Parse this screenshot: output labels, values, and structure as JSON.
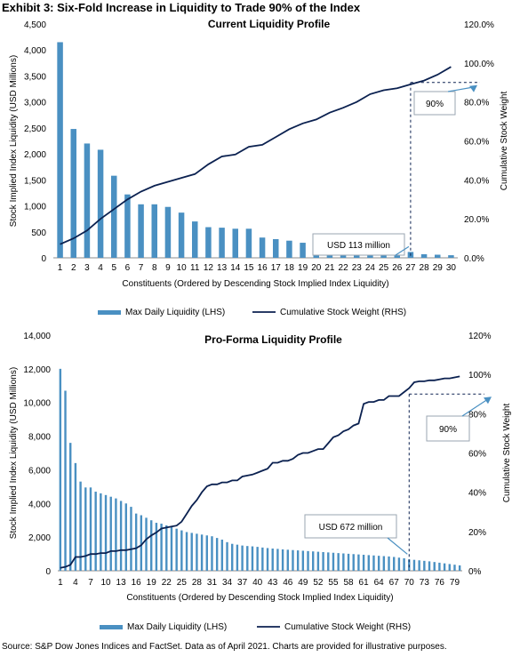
{
  "exhibit_title": "Exhibit 3: Six-Fold Increase in Liquidity to Trade 90% of the Index",
  "source_note": "Source: S&P Dow Jones Indices and FactSet. Data as of April 2021. Charts are provided for illustrative purposes.",
  "colors": {
    "bar": "#4a90c2",
    "line": "#0b2150",
    "callout": "#4a90c2"
  },
  "chart_data": [
    {
      "type": "bar",
      "title": "Current Liquidity Profile",
      "xlabel": "Constituents (Ordered by Descending Stock Implied Index Liquidity)",
      "ylabel": "Stock Implied Index Liquidity (USD Millions)",
      "y2label": "Cumulative Stock Weight",
      "ylim": [
        0,
        4500
      ],
      "y2lim": [
        0,
        1.2
      ],
      "yticks": [
        "0",
        "500",
        "1,000",
        "1,500",
        "2,000",
        "2,500",
        "3,000",
        "3,500",
        "4,000",
        "4,500"
      ],
      "y2ticks": [
        "0.0%",
        "20.0%",
        "40.0%",
        "60.0%",
        "80.0%",
        "100.0%",
        "120.0%"
      ],
      "xticks": [
        "1",
        "2",
        "3",
        "4",
        "5",
        "6",
        "7",
        "8",
        "9",
        "10",
        "11",
        "12",
        "13",
        "14",
        "15",
        "16",
        "17",
        "18",
        "19",
        "20",
        "21",
        "22",
        "23",
        "24",
        "25",
        "26",
        "27",
        "28",
        "29",
        "30"
      ],
      "categories": [
        1,
        2,
        3,
        4,
        5,
        6,
        7,
        8,
        9,
        10,
        11,
        12,
        13,
        14,
        15,
        16,
        17,
        18,
        19,
        20,
        21,
        22,
        23,
        24,
        25,
        26,
        27,
        28,
        29,
        30
      ],
      "series": [
        {
          "name": "Max Daily Liquidity (LHS)",
          "kind": "bar",
          "values": [
            4150,
            2480,
            2200,
            2080,
            1580,
            1220,
            1030,
            1030,
            980,
            870,
            700,
            590,
            580,
            560,
            560,
            390,
            360,
            330,
            290,
            290,
            290,
            250,
            210,
            190,
            170,
            160,
            113,
            70,
            60,
            50
          ]
        },
        {
          "name": "Cumulative Stock Weight (RHS)",
          "kind": "line",
          "values": [
            0.07,
            0.1,
            0.14,
            0.2,
            0.25,
            0.3,
            0.34,
            0.37,
            0.39,
            0.41,
            0.43,
            0.48,
            0.52,
            0.53,
            0.57,
            0.58,
            0.62,
            0.66,
            0.69,
            0.71,
            0.745,
            0.77,
            0.8,
            0.84,
            0.86,
            0.87,
            0.89,
            0.91,
            0.94,
            0.98
          ]
        }
      ],
      "annotations": [
        {
          "text": "90%",
          "x": 27,
          "y2": 0.9
        },
        {
          "text": "USD 113 million",
          "x": 27,
          "y": 113
        }
      ]
    },
    {
      "type": "bar",
      "title": "Pro-Forma Liquidity Profile",
      "xlabel": "Constituents (Ordered by Descending Stock Implied Index Liquidity)",
      "ylabel": "Stock Implied Index Liquidity (USD Millions)",
      "y2label": "Cumulative Stock Weight",
      "ylim": [
        0,
        14000
      ],
      "y2lim": [
        0,
        1.2
      ],
      "yticks": [
        "0",
        "2,000",
        "4,000",
        "6,000",
        "8,000",
        "10,000",
        "12,000",
        "14,000"
      ],
      "y2ticks": [
        "0%",
        "20%",
        "40%",
        "60%",
        "80%",
        "100%",
        "120%"
      ],
      "xticks": [
        "1",
        "4",
        "7",
        "10",
        "13",
        "16",
        "19",
        "22",
        "25",
        "28",
        "31",
        "34",
        "37",
        "40",
        "43",
        "46",
        "49",
        "52",
        "55",
        "58",
        "61",
        "64",
        "67",
        "70",
        "73",
        "76",
        "79"
      ],
      "categories": [
        1,
        2,
        3,
        4,
        5,
        6,
        7,
        8,
        9,
        10,
        11,
        12,
        13,
        14,
        15,
        16,
        17,
        18,
        19,
        20,
        21,
        22,
        23,
        24,
        25,
        26,
        27,
        28,
        29,
        30,
        31,
        32,
        33,
        34,
        35,
        36,
        37,
        38,
        39,
        40,
        41,
        42,
        43,
        44,
        45,
        46,
        47,
        48,
        49,
        50,
        51,
        52,
        53,
        54,
        55,
        56,
        57,
        58,
        59,
        60,
        61,
        62,
        63,
        64,
        65,
        66,
        67,
        68,
        69,
        70,
        71,
        72,
        73,
        74,
        75,
        76,
        77,
        78,
        79,
        80
      ],
      "series": [
        {
          "name": "Max Daily Liquidity (LHS)",
          "kind": "bar",
          "values": [
            12000,
            10700,
            7600,
            6400,
            5300,
            4950,
            4950,
            4700,
            4600,
            4500,
            4400,
            4300,
            4150,
            4000,
            3800,
            3400,
            3300,
            3150,
            3000,
            2850,
            2800,
            2700,
            2600,
            2500,
            2400,
            2300,
            2250,
            2200,
            2150,
            2100,
            2050,
            1950,
            1850,
            1700,
            1600,
            1550,
            1500,
            1470,
            1450,
            1420,
            1380,
            1350,
            1320,
            1300,
            1270,
            1250,
            1230,
            1210,
            1190,
            1170,
            1150,
            1130,
            1110,
            1090,
            1070,
            1050,
            1030,
            1010,
            990,
            970,
            950,
            930,
            910,
            890,
            870,
            850,
            820,
            780,
            740,
            672,
            650,
            620,
            590,
            560,
            520,
            480,
            440,
            400,
            360,
            320
          ]
        },
        {
          "name": "Cumulative Stock Weight (RHS)",
          "kind": "line",
          "values": [
            0.015,
            0.02,
            0.03,
            0.07,
            0.07,
            0.075,
            0.085,
            0.085,
            0.09,
            0.09,
            0.1,
            0.1,
            0.105,
            0.105,
            0.11,
            0.115,
            0.13,
            0.16,
            0.18,
            0.195,
            0.215,
            0.22,
            0.225,
            0.23,
            0.25,
            0.29,
            0.33,
            0.36,
            0.4,
            0.43,
            0.44,
            0.44,
            0.45,
            0.45,
            0.46,
            0.46,
            0.48,
            0.485,
            0.49,
            0.5,
            0.51,
            0.52,
            0.55,
            0.55,
            0.56,
            0.56,
            0.57,
            0.59,
            0.6,
            0.6,
            0.61,
            0.62,
            0.62,
            0.65,
            0.68,
            0.69,
            0.71,
            0.72,
            0.74,
            0.75,
            0.85,
            0.86,
            0.86,
            0.87,
            0.87,
            0.89,
            0.89,
            0.89,
            0.91,
            0.93,
            0.96,
            0.965,
            0.965,
            0.97,
            0.97,
            0.975,
            0.98,
            0.98,
            0.985,
            0.99
          ]
        }
      ],
      "annotations": [
        {
          "text": "90%",
          "x": 70,
          "y2": 0.9
        },
        {
          "text": "USD 672 million",
          "x": 70,
          "y": 672
        }
      ]
    }
  ]
}
